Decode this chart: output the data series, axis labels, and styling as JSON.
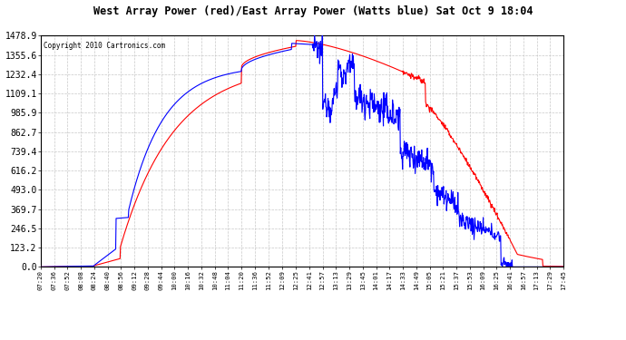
{
  "title": "West Array Power (red)/East Array Power (Watts blue) Sat Oct 9 18:04",
  "copyright": "Copyright 2010 Cartronics.com",
  "background_color": "#ffffff",
  "plot_bg_color": "#ffffff",
  "grid_color": "#c8c8c8",
  "red_color": "#ff0000",
  "blue_color": "#0000ff",
  "ylim": [
    0.0,
    1478.9
  ],
  "yticks": [
    0.0,
    123.2,
    246.5,
    369.7,
    493.0,
    616.2,
    739.4,
    862.7,
    985.9,
    1109.1,
    1232.4,
    1355.6,
    1478.9
  ],
  "xtick_labels": [
    "07:20",
    "07:36",
    "07:52",
    "08:08",
    "08:24",
    "08:40",
    "08:56",
    "09:12",
    "09:28",
    "09:44",
    "10:00",
    "10:16",
    "10:32",
    "10:48",
    "11:04",
    "11:20",
    "11:36",
    "11:52",
    "12:09",
    "12:25",
    "12:41",
    "12:57",
    "13:13",
    "13:29",
    "13:45",
    "14:01",
    "14:17",
    "14:33",
    "14:49",
    "15:05",
    "15:21",
    "15:37",
    "15:53",
    "16:09",
    "16:25",
    "16:41",
    "16:57",
    "17:13",
    "17:29",
    "17:45"
  ]
}
